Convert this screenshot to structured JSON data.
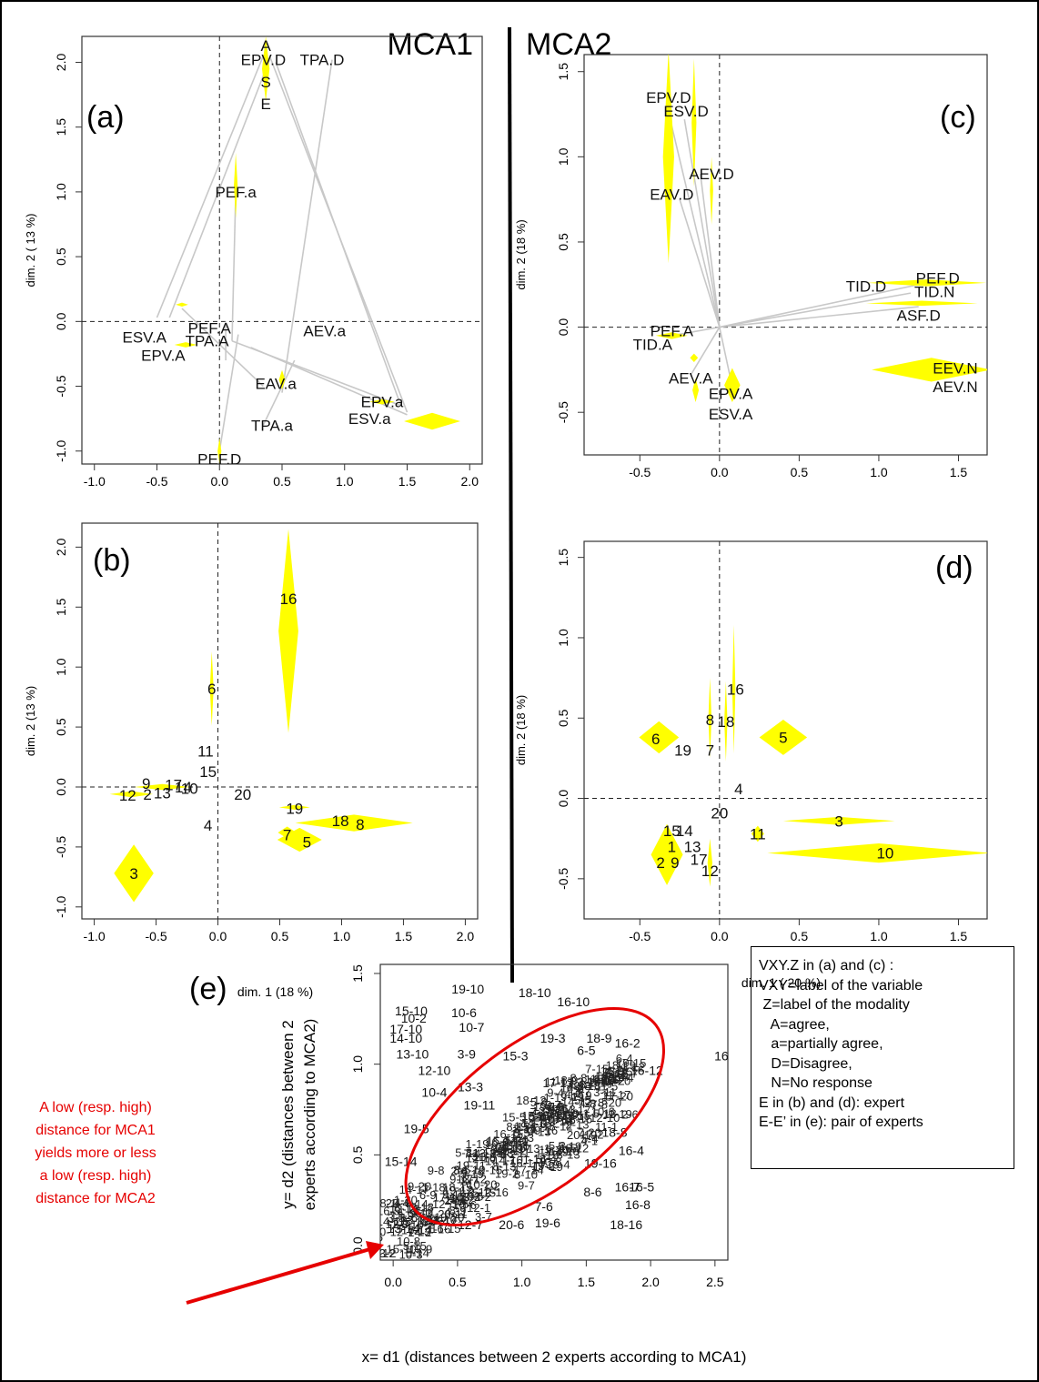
{
  "headers": {
    "left": "MCA1",
    "right": "MCA2"
  },
  "colors": {
    "ellipse_fill": "#ffff00",
    "segment": "#c8c8c8",
    "ellipse_e": "#e60000",
    "annotation": "#e60000"
  },
  "chart_data": [
    {
      "id": "a",
      "panel_label": "(a)",
      "type": "scatter",
      "xlabel": "",
      "ylabel": "dim. 2 ( 13 %)",
      "xlim": [
        -1.1,
        2.1
      ],
      "ylim": [
        -1.1,
        2.2
      ],
      "xticks": [
        -1.0,
        -0.5,
        0.0,
        0.5,
        1.0,
        1.5,
        2.0
      ],
      "yticks": [
        -1.0,
        -0.5,
        0.0,
        0.5,
        1.0,
        1.5,
        2.0
      ],
      "origin_lines": true,
      "points": [
        {
          "label": "A",
          "x": 0.37,
          "y": 2.13
        },
        {
          "label": "EPV.D",
          "x": 0.35,
          "y": 2.02
        },
        {
          "label": "TPA.D",
          "x": 0.82,
          "y": 2.02
        },
        {
          "label": "S",
          "x": 0.37,
          "y": 1.85
        },
        {
          "label": "E",
          "x": 0.37,
          "y": 1.68
        },
        {
          "label": "PEF.a",
          "x": 0.13,
          "y": 1.0
        },
        {
          "label": "AEV.a",
          "x": 0.84,
          "y": -0.07
        },
        {
          "label": "ESV.A",
          "x": -0.6,
          "y": -0.12
        },
        {
          "label": "PEF.A",
          "x": -0.08,
          "y": -0.05
        },
        {
          "label": "TPA.A",
          "x": -0.1,
          "y": -0.15
        },
        {
          "label": "EPV.A",
          "x": -0.45,
          "y": -0.26
        },
        {
          "label": "EAV.a",
          "x": 0.45,
          "y": -0.48
        },
        {
          "label": "EPV.a",
          "x": 1.3,
          "y": -0.62
        },
        {
          "label": "ESV.a",
          "x": 1.2,
          "y": -0.75
        },
        {
          "label": "TPA.a",
          "x": 0.42,
          "y": -0.8
        },
        {
          "label": "PEF.D",
          "x": 0.0,
          "y": -1.06
        }
      ],
      "ellipses": [
        {
          "x": 0.37,
          "y": 1.95,
          "w": 0.06,
          "h": 0.5
        },
        {
          "x": 0.13,
          "y": 1.05,
          "w": 0.03,
          "h": 0.5
        },
        {
          "x": 1.7,
          "y": -0.77,
          "w": 0.45,
          "h": 0.13
        },
        {
          "x": 1.3,
          "y": -0.62,
          "w": 0.2,
          "h": 0.04
        },
        {
          "x": 0.5,
          "y": -0.45,
          "w": 0.05,
          "h": 0.15
        },
        {
          "x": -0.3,
          "y": 0.13,
          "w": 0.1,
          "h": 0.03
        },
        {
          "x": -0.27,
          "y": -0.18,
          "w": 0.18,
          "h": 0.04
        },
        {
          "x": 0.0,
          "y": -1.0,
          "w": 0.03,
          "h": 0.2
        }
      ],
      "segments": [
        [
          -0.5,
          0.03,
          0.35,
          2.05
        ],
        [
          -0.4,
          0.03,
          0.4,
          2.02
        ],
        [
          0.5,
          -0.55,
          0.9,
          2.02
        ],
        [
          1.5,
          -0.7,
          0.4,
          2.05
        ],
        [
          1.45,
          -0.65,
          0.45,
          2.0
        ],
        [
          0.1,
          -0.15,
          0.13,
          1.0
        ],
        [
          0.25,
          -0.2,
          1.5,
          -0.72
        ],
        [
          0.1,
          -0.15,
          1.45,
          -0.65
        ],
        [
          0.35,
          -0.8,
          0.6,
          -0.3
        ],
        [
          -0.3,
          0.1,
          0.35,
          -0.5
        ],
        [
          0.0,
          -1.0,
          0.15,
          -0.1
        ],
        [
          0.05,
          0.0,
          0.05,
          -0.3
        ]
      ]
    },
    {
      "id": "b",
      "panel_label": "(b)",
      "type": "scatter",
      "xlabel": "dim. 1 (18 %)",
      "ylabel": "dim. 2 (13 %)",
      "xlim": [
        -1.1,
        2.1
      ],
      "ylim": [
        -1.1,
        2.2
      ],
      "xticks": [
        -1.0,
        -0.5,
        0.0,
        0.5,
        1.0,
        1.5,
        2.0
      ],
      "yticks": [
        -1.0,
        -0.5,
        0.0,
        0.5,
        1.0,
        1.5,
        2.0
      ],
      "origin_lines": true,
      "points": [
        {
          "label": "16",
          "x": 0.57,
          "y": 1.57
        },
        {
          "label": "6",
          "x": -0.05,
          "y": 0.82
        },
        {
          "label": "11",
          "x": -0.1,
          "y": 0.3
        },
        {
          "label": "15",
          "x": -0.08,
          "y": 0.13
        },
        {
          "label": "9",
          "x": -0.58,
          "y": 0.03
        },
        {
          "label": "17",
          "x": -0.36,
          "y": 0.02
        },
        {
          "label": "14",
          "x": -0.28,
          "y": 0.0
        },
        {
          "label": "10",
          "x": -0.23,
          "y": -0.01
        },
        {
          "label": "12",
          "x": -0.73,
          "y": -0.07
        },
        {
          "label": "2",
          "x": -0.57,
          "y": -0.06
        },
        {
          "label": "13",
          "x": -0.45,
          "y": -0.05
        },
        {
          "label": "20",
          "x": 0.2,
          "y": -0.06
        },
        {
          "label": "19",
          "x": 0.62,
          "y": -0.18
        },
        {
          "label": "18",
          "x": 0.99,
          "y": -0.28
        },
        {
          "label": "8",
          "x": 1.15,
          "y": -0.31
        },
        {
          "label": "4",
          "x": -0.08,
          "y": -0.32
        },
        {
          "label": "7",
          "x": 0.56,
          "y": -0.4
        },
        {
          "label": "5",
          "x": 0.72,
          "y": -0.46
        },
        {
          "label": "3",
          "x": -0.68,
          "y": -0.72
        }
      ],
      "ellipses": [
        {
          "x": 0.57,
          "y": 1.3,
          "w": 0.16,
          "h": 1.7
        },
        {
          "x": -0.05,
          "y": 0.82,
          "w": 0.03,
          "h": 0.62
        },
        {
          "x": -0.68,
          "y": -0.72,
          "w": 0.32,
          "h": 0.48
        },
        {
          "x": 1.1,
          "y": -0.3,
          "w": 0.95,
          "h": 0.14
        },
        {
          "x": 0.66,
          "y": -0.44,
          "w": 0.36,
          "h": 0.2
        },
        {
          "x": 0.56,
          "y": -0.38,
          "w": 0.15,
          "h": 0.1
        },
        {
          "x": 0.62,
          "y": -0.17,
          "w": 0.25,
          "h": 0.04
        },
        {
          "x": -0.7,
          "y": -0.06,
          "w": 0.35,
          "h": 0.05
        },
        {
          "x": -0.45,
          "y": 0.0,
          "w": 0.45,
          "h": 0.05
        }
      ]
    },
    {
      "id": "c",
      "panel_label": "(c)",
      "type": "scatter",
      "xlabel": "",
      "ylabel": "dim. 2 (18 %)",
      "xlim": [
        -0.85,
        1.68
      ],
      "ylim": [
        -0.75,
        1.6
      ],
      "xticks": [
        -0.5,
        0.0,
        0.5,
        1.0,
        1.5
      ],
      "yticks": [
        -0.5,
        0.0,
        0.5,
        1.0,
        1.5
      ],
      "origin_lines": true,
      "points": [
        {
          "label": "EPV.D",
          "x": -0.32,
          "y": 1.35
        },
        {
          "label": "ESV.D",
          "x": -0.21,
          "y": 1.27
        },
        {
          "label": "AEV.D",
          "x": -0.05,
          "y": 0.9
        },
        {
          "label": "EAV.D",
          "x": -0.3,
          "y": 0.78
        },
        {
          "label": "TID.D",
          "x": 0.92,
          "y": 0.24
        },
        {
          "label": "PEF.D",
          "x": 1.37,
          "y": 0.29
        },
        {
          "label": "TID.N",
          "x": 1.35,
          "y": 0.21
        },
        {
          "label": "ASF.D",
          "x": 1.25,
          "y": 0.07
        },
        {
          "label": "PEF.A",
          "x": -0.3,
          "y": -0.02
        },
        {
          "label": "TID.A",
          "x": -0.42,
          "y": -0.1
        },
        {
          "label": "EEV.N",
          "x": 1.48,
          "y": -0.24
        },
        {
          "label": "AEV.N",
          "x": 1.48,
          "y": -0.35
        },
        {
          "label": "AEV.A",
          "x": -0.18,
          "y": -0.3
        },
        {
          "label": "EPV.A",
          "x": 0.07,
          "y": -0.39
        },
        {
          "label": "ESV.A",
          "x": 0.07,
          "y": -0.51
        }
      ],
      "ellipses": [
        {
          "x": -0.32,
          "y": 1.0,
          "w": 0.07,
          "h": 1.25
        },
        {
          "x": -0.16,
          "y": 1.2,
          "w": 0.03,
          "h": 0.75
        },
        {
          "x": -0.05,
          "y": 0.8,
          "w": 0.02,
          "h": 0.4
        },
        {
          "x": 1.3,
          "y": 0.26,
          "w": 0.75,
          "h": 0.04
        },
        {
          "x": 1.27,
          "y": 0.14,
          "w": 0.7,
          "h": 0.03
        },
        {
          "x": 1.33,
          "y": -0.25,
          "w": 0.75,
          "h": 0.14
        },
        {
          "x": -0.3,
          "y": -0.05,
          "w": 0.2,
          "h": 0.04
        },
        {
          "x": -0.16,
          "y": -0.18,
          "w": 0.05,
          "h": 0.05
        },
        {
          "x": 0.08,
          "y": -0.34,
          "w": 0.1,
          "h": 0.2
        },
        {
          "x": -0.15,
          "y": -0.37,
          "w": 0.04,
          "h": 0.14
        }
      ],
      "segments": [
        [
          0.0,
          0.0,
          -0.33,
          1.3
        ],
        [
          0.0,
          0.0,
          -0.22,
          1.22
        ],
        [
          0.0,
          0.0,
          -0.12,
          0.9
        ],
        [
          0.0,
          0.0,
          -0.25,
          0.75
        ],
        [
          0.0,
          0.0,
          1.3,
          0.26
        ],
        [
          0.0,
          0.0,
          1.2,
          0.2
        ],
        [
          0.0,
          0.0,
          1.25,
          0.12
        ],
        [
          0.0,
          0.0,
          -0.3,
          -0.05
        ],
        [
          0.0,
          0.0,
          0.08,
          -0.35
        ],
        [
          0.0,
          0.0,
          -0.18,
          -0.28
        ]
      ]
    },
    {
      "id": "d",
      "panel_label": "(d)",
      "type": "scatter",
      "xlabel": "dim. 1 ( 20 %)",
      "ylabel": "dim. 2 (18 %)",
      "xlim": [
        -0.85,
        1.68
      ],
      "ylim": [
        -0.75,
        1.6
      ],
      "xticks": [
        -0.5,
        0.0,
        0.5,
        1.0,
        1.5
      ],
      "yticks": [
        -0.5,
        0.0,
        0.5,
        1.0,
        1.5
      ],
      "origin_lines": true,
      "points": [
        {
          "label": "16",
          "x": 0.1,
          "y": 0.68
        },
        {
          "label": "8",
          "x": -0.06,
          "y": 0.49
        },
        {
          "label": "18",
          "x": 0.04,
          "y": 0.48
        },
        {
          "label": "6",
          "x": -0.4,
          "y": 0.37
        },
        {
          "label": "19",
          "x": -0.23,
          "y": 0.3
        },
        {
          "label": "7",
          "x": -0.06,
          "y": 0.3
        },
        {
          "label": "5",
          "x": 0.4,
          "y": 0.38
        },
        {
          "label": "4",
          "x": 0.12,
          "y": 0.06
        },
        {
          "label": "20",
          "x": 0.0,
          "y": -0.09
        },
        {
          "label": "3",
          "x": 0.75,
          "y": -0.14
        },
        {
          "label": "15",
          "x": -0.3,
          "y": -0.2
        },
        {
          "label": "14",
          "x": -0.22,
          "y": -0.2
        },
        {
          "label": "11",
          "x": 0.24,
          "y": -0.22
        },
        {
          "label": "1",
          "x": -0.3,
          "y": -0.3
        },
        {
          "label": "13",
          "x": -0.17,
          "y": -0.3
        },
        {
          "label": "17",
          "x": -0.13,
          "y": -0.38
        },
        {
          "label": "2",
          "x": -0.37,
          "y": -0.4
        },
        {
          "label": "9",
          "x": -0.28,
          "y": -0.4
        },
        {
          "label": "10",
          "x": 1.04,
          "y": -0.34
        },
        {
          "label": "12",
          "x": -0.06,
          "y": -0.45
        }
      ],
      "ellipses": [
        {
          "x": 0.09,
          "y": 0.68,
          "w": 0.02,
          "h": 0.8
        },
        {
          "x": -0.06,
          "y": 0.5,
          "w": 0.02,
          "h": 0.5
        },
        {
          "x": 0.04,
          "y": 0.48,
          "w": 0.02,
          "h": 0.5
        },
        {
          "x": -0.38,
          "y": 0.38,
          "w": 0.25,
          "h": 0.2
        },
        {
          "x": 0.4,
          "y": 0.38,
          "w": 0.3,
          "h": 0.22
        },
        {
          "x": -0.33,
          "y": -0.35,
          "w": 0.2,
          "h": 0.38
        },
        {
          "x": 0.75,
          "y": -0.14,
          "w": 0.7,
          "h": 0.05
        },
        {
          "x": 1.0,
          "y": -0.34,
          "w": 1.4,
          "h": 0.12
        },
        {
          "x": 0.24,
          "y": -0.22,
          "w": 0.08,
          "h": 0.1
        },
        {
          "x": -0.06,
          "y": -0.4,
          "w": 0.03,
          "h": 0.3
        }
      ]
    },
    {
      "id": "e",
      "panel_label": "(e)",
      "type": "scatter",
      "xlabel": "x= d1 (distances between 2 experts according to MCA1)",
      "ylabel_lines": [
        "y= d2 (distances between 2",
        "experts according to MCA2)"
      ],
      "xlim": [
        -0.1,
        2.6
      ],
      "ylim": [
        -0.08,
        1.55
      ],
      "xticks": [
        0.0,
        0.5,
        1.0,
        1.5,
        2.0,
        2.5
      ],
      "yticks": [
        0.0,
        0.5,
        1.0,
        1.5
      ],
      "origin_lines": false,
      "ellipse_outline": {
        "x": 1.1,
        "y": 0.71,
        "rx": 1.18,
        "ry": 0.4,
        "angle_deg": 37
      },
      "points": [
        {
          "label": "19-10",
          "x": 0.58,
          "y": 1.42
        },
        {
          "label": "18-10",
          "x": 1.1,
          "y": 1.4
        },
        {
          "label": "16-10",
          "x": 1.4,
          "y": 1.35
        },
        {
          "label": "15-10",
          "x": 0.14,
          "y": 1.3
        },
        {
          "label": "10-6",
          "x": 0.55,
          "y": 1.29
        },
        {
          "label": "10-2",
          "x": 0.16,
          "y": 1.26
        },
        {
          "label": "17-10",
          "x": 0.1,
          "y": 1.2
        },
        {
          "label": "14-10",
          "x": 0.1,
          "y": 1.15
        },
        {
          "label": "10-7",
          "x": 0.61,
          "y": 1.21
        },
        {
          "label": "19-3",
          "x": 1.24,
          "y": 1.15
        },
        {
          "label": "18-9",
          "x": 1.6,
          "y": 1.15
        },
        {
          "label": "16-2",
          "x": 1.82,
          "y": 1.12
        },
        {
          "label": "13-10",
          "x": 0.15,
          "y": 1.06
        },
        {
          "label": "3-9",
          "x": 0.57,
          "y": 1.06
        },
        {
          "label": "15-3",
          "x": 0.95,
          "y": 1.05
        },
        {
          "label": "6-5",
          "x": 1.5,
          "y": 1.08
        },
        {
          "label": "16",
          "x": 2.55,
          "y": 1.05
        },
        {
          "label": "12-10",
          "x": 0.32,
          "y": 0.97
        },
        {
          "label": "16-12",
          "x": 1.97,
          "y": 0.97
        },
        {
          "label": "10-4",
          "x": 0.32,
          "y": 0.85
        },
        {
          "label": "13-3",
          "x": 0.6,
          "y": 0.88
        },
        {
          "label": "19-11",
          "x": 0.67,
          "y": 0.78
        },
        {
          "label": "19-5",
          "x": 0.18,
          "y": 0.65
        },
        {
          "label": "18-8",
          "x": 1.72,
          "y": 0.63
        },
        {
          "label": "16-4",
          "x": 1.85,
          "y": 0.53
        },
        {
          "label": "15-14",
          "x": 0.06,
          "y": 0.47
        },
        {
          "label": "19-16",
          "x": 1.61,
          "y": 0.46
        },
        {
          "label": "7-6",
          "x": 1.17,
          "y": 0.22
        },
        {
          "label": "8-6",
          "x": 1.55,
          "y": 0.3
        },
        {
          "label": "16-7",
          "x": 1.82,
          "y": 0.33
        },
        {
          "label": "16-5",
          "x": 1.93,
          "y": 0.33
        },
        {
          "label": "16-8",
          "x": 1.9,
          "y": 0.23
        },
        {
          "label": "18-16",
          "x": 1.81,
          "y": 0.12
        },
        {
          "label": "20-6",
          "x": 0.92,
          "y": 0.12
        },
        {
          "label": "19-6",
          "x": 1.2,
          "y": 0.13
        },
        {
          "label": "12-7",
          "x": 0.6,
          "y": 0.12
        },
        {
          "label": "13-14",
          "x": 0.08,
          "y": 0.1
        }
      ],
      "cloud_count": 220
    }
  ],
  "legend_lines": [
    "VXY.Z in (a) and (c) :",
    "VXY=label of the variable",
    " Z=label of the modality",
    "   A=agree,",
    "   a=partially agree,",
    "   D=Disagree,",
    "   N=No response",
    "E in (b) and (d): expert",
    "E-E’ in (e): pair of experts"
  ],
  "annotation_lines": [
    "A low (resp. high)",
    "distance for MCA1",
    "yields more or less",
    "a low (resp. high)",
    "distance for MCA2"
  ]
}
